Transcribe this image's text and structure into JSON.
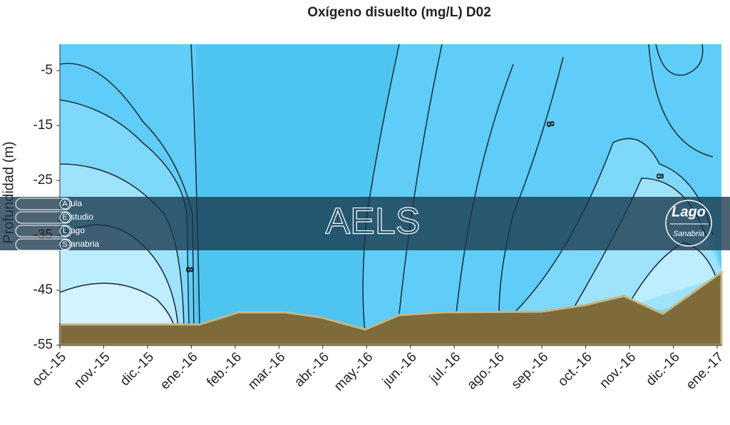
{
  "chart_data": {
    "type": "contour",
    "title": "Oxígeno disuelto (mg/L) D02",
    "y_label": "Profundidad (m)",
    "categories": [
      "oct.-15",
      "nov.-15",
      "dic.-15",
      "ene.-16",
      "feb.-16",
      "mar.-16",
      "abr.-16",
      "may.-16",
      "jun.-16",
      "jul.-16",
      "ago.-16",
      "sep.-16",
      "oct.-16",
      "nov.-16",
      "dic.-16",
      "ene.-17"
    ],
    "ylim": [
      -55,
      0
    ],
    "yticks": [
      -5,
      -15,
      -25,
      -35,
      -45,
      -55
    ],
    "contour_labels": [
      "8",
      "8",
      "8"
    ]
  },
  "watermark": {
    "text": "AELS",
    "letters": [
      "A",
      "E",
      "L",
      "S"
    ],
    "words": [
      "ula",
      "studio",
      "ago",
      "anabria"
    ],
    "logo": [
      "Lago",
      "Sanabria"
    ]
  }
}
